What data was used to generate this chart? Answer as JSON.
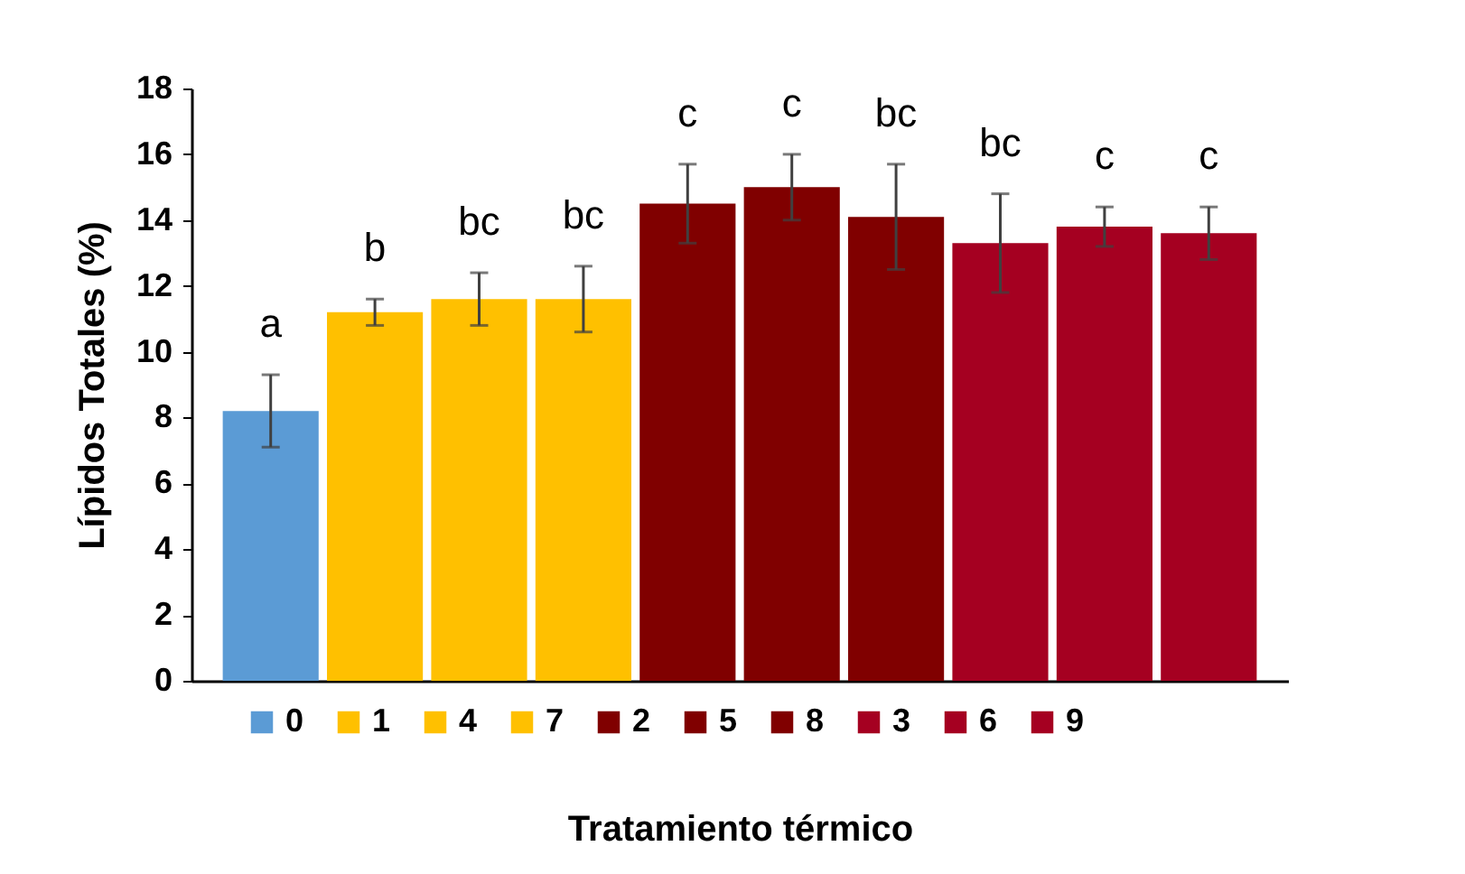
{
  "chart_data": {
    "type": "bar",
    "xlabel": "Tratamiento térmico",
    "ylabel": "Lípidos Totales (%)",
    "categories": [
      null,
      null,
      null,
      null,
      null,
      null,
      null,
      null,
      null,
      null
    ],
    "series": [
      {
        "name": "0",
        "color": "#5b9bd5",
        "values": [
          8.2,
          null,
          null,
          null,
          null,
          null,
          null,
          null,
          null,
          null
        ],
        "errors": [
          1.1,
          null,
          null,
          null,
          null,
          null,
          null,
          null,
          null,
          null
        ],
        "value_labels": [
          "a",
          null,
          null,
          null,
          null,
          null,
          null,
          null,
          null,
          null
        ]
      },
      {
        "name": "1",
        "color": "#ffc000",
        "values": [
          null,
          11.2,
          null,
          null,
          null,
          null,
          null,
          null,
          null,
          null
        ],
        "errors": [
          null,
          0.4,
          null,
          null,
          null,
          null,
          null,
          null,
          null,
          null
        ],
        "value_labels": [
          null,
          "b",
          null,
          null,
          null,
          null,
          null,
          null,
          null,
          null
        ]
      },
      {
        "name": "4",
        "color": "#ffc000",
        "values": [
          null,
          null,
          11.6,
          null,
          null,
          null,
          null,
          null,
          null,
          null
        ],
        "errors": [
          null,
          null,
          0.8,
          null,
          null,
          null,
          null,
          null,
          null,
          null
        ],
        "value_labels": [
          null,
          null,
          "bc",
          null,
          null,
          null,
          null,
          null,
          null,
          null
        ]
      },
      {
        "name": "7",
        "color": "#ffc000",
        "values": [
          null,
          null,
          null,
          11.6,
          null,
          null,
          null,
          null,
          null,
          null
        ],
        "errors": [
          null,
          null,
          null,
          1.0,
          null,
          null,
          null,
          null,
          null,
          null
        ],
        "value_labels": [
          null,
          null,
          null,
          "bc",
          null,
          null,
          null,
          null,
          null,
          null
        ]
      },
      {
        "name": "2",
        "color": "#800000",
        "values": [
          null,
          null,
          null,
          null,
          14.5,
          null,
          null,
          null,
          null,
          null
        ],
        "errors": [
          null,
          null,
          null,
          null,
          1.2,
          null,
          null,
          null,
          null,
          null
        ],
        "value_labels": [
          null,
          null,
          null,
          null,
          "c",
          null,
          null,
          null,
          null,
          null
        ]
      },
      {
        "name": "5",
        "color": "#800000",
        "values": [
          null,
          null,
          null,
          null,
          null,
          15.0,
          null,
          null,
          null,
          null
        ],
        "errors": [
          null,
          null,
          null,
          null,
          null,
          1.0,
          null,
          null,
          null,
          null
        ],
        "value_labels": [
          null,
          null,
          null,
          null,
          null,
          "c",
          null,
          null,
          null,
          null
        ]
      },
      {
        "name": "8",
        "color": "#800000",
        "values": [
          null,
          null,
          null,
          null,
          null,
          null,
          14.1,
          null,
          null,
          null
        ],
        "errors": [
          null,
          null,
          null,
          null,
          null,
          null,
          1.6,
          null,
          null,
          null
        ],
        "value_labels": [
          null,
          null,
          null,
          null,
          null,
          null,
          "bc",
          null,
          null,
          null
        ]
      },
      {
        "name": "3",
        "color": "#a50021",
        "values": [
          null,
          null,
          null,
          null,
          null,
          null,
          null,
          13.3,
          null,
          null
        ],
        "errors": [
          null,
          null,
          null,
          null,
          null,
          null,
          null,
          1.5,
          null,
          null
        ],
        "value_labels": [
          null,
          null,
          null,
          null,
          null,
          null,
          null,
          "bc",
          null,
          null
        ]
      },
      {
        "name": "6",
        "color": "#a50021",
        "values": [
          null,
          null,
          null,
          null,
          null,
          null,
          null,
          null,
          13.8,
          null
        ],
        "errors": [
          null,
          null,
          null,
          null,
          null,
          null,
          null,
          null,
          0.6,
          null
        ],
        "value_labels": [
          null,
          null,
          null,
          null,
          null,
          null,
          null,
          null,
          "c",
          null
        ]
      },
      {
        "name": "9",
        "color": "#a50021",
        "values": [
          null,
          null,
          null,
          null,
          null,
          null,
          null,
          null,
          null,
          13.6
        ],
        "errors": [
          null,
          null,
          null,
          null,
          null,
          null,
          null,
          null,
          null,
          0.8
        ],
        "value_labels": [
          null,
          null,
          null,
          null,
          null,
          null,
          null,
          null,
          null,
          "c"
        ]
      }
    ],
    "ylim": [
      0,
      18
    ],
    "yticks": [
      0,
      2,
      4,
      6,
      8,
      10,
      12,
      14,
      16,
      18
    ],
    "grid": false,
    "legend": "bottom"
  }
}
